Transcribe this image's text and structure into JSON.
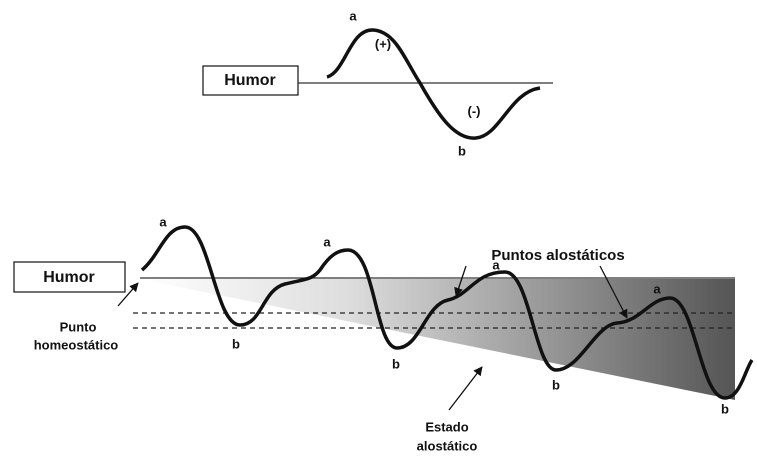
{
  "top": {
    "label": "Humor",
    "peak": "a",
    "positive": "(+)",
    "negative": "(-)",
    "trough": "b"
  },
  "bottom": {
    "label": "Humor",
    "peaks": [
      "a",
      "a",
      "a",
      "a"
    ],
    "troughs": [
      "b",
      "b",
      "b",
      "b"
    ],
    "homeostatic_point": [
      "Punto",
      "homeostático"
    ],
    "allostatic_points": "Puntos alostáticos",
    "allostatic_state": [
      "Estado",
      "alostático"
    ]
  }
}
